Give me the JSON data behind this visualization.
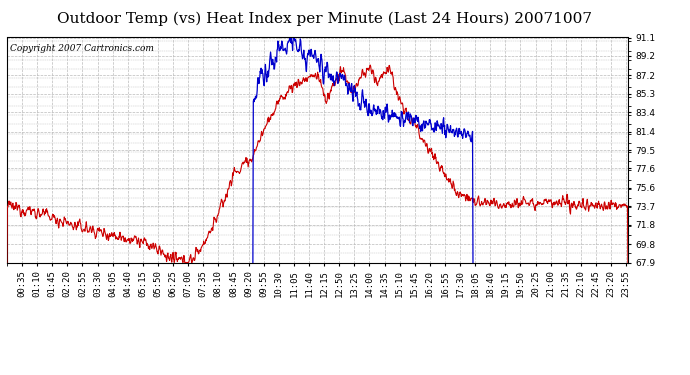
{
  "title": "Outdoor Temp (vs) Heat Index per Minute (Last 24 Hours) 20071007",
  "copyright": "Copyright 2007 Cartronics.com",
  "ymin": 67.9,
  "ymax": 91.1,
  "yticks": [
    91.1,
    89.2,
    87.2,
    85.3,
    83.4,
    81.4,
    79.5,
    77.6,
    75.6,
    73.7,
    71.8,
    69.8,
    67.9
  ],
  "bg_color": "#ffffff",
  "grid_color": "#bbbbbb",
  "line_color_red": "#cc0000",
  "line_color_blue": "#0000cc",
  "title_fontsize": 11,
  "copyright_fontsize": 6.5,
  "tick_fontsize": 6.5,
  "x_tick_labels": [
    "00:35",
    "01:10",
    "01:45",
    "02:20",
    "02:55",
    "03:30",
    "04:05",
    "04:40",
    "05:15",
    "05:50",
    "06:25",
    "07:00",
    "07:35",
    "08:10",
    "08:45",
    "09:20",
    "09:55",
    "10:30",
    "11:05",
    "11:40",
    "12:15",
    "12:50",
    "13:25",
    "14:00",
    "14:35",
    "15:10",
    "15:45",
    "16:20",
    "16:55",
    "17:30",
    "18:05",
    "18:40",
    "19:15",
    "19:50",
    "20:25",
    "21:00",
    "21:35",
    "22:10",
    "22:45",
    "23:20",
    "23:55"
  ]
}
